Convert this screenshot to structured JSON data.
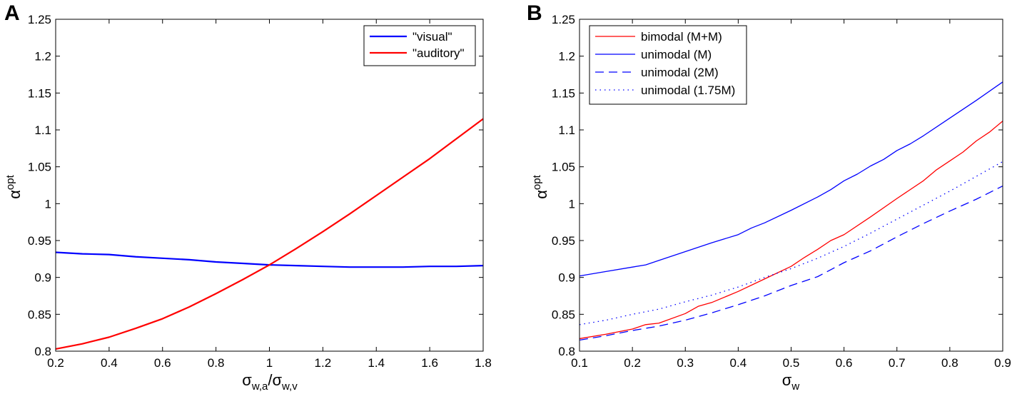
{
  "chart_data": [
    {
      "panel": "A",
      "type": "line",
      "title": "",
      "xlabel_main": "σ",
      "xlabel_sub1": "w,a",
      "xlabel_slash": "/σ",
      "xlabel_sub2": "w,v",
      "ylabel_main": "α",
      "ylabel_sup": "opt",
      "xlim": [
        0.2,
        1.8
      ],
      "ylim": [
        0.8,
        1.25
      ],
      "xticks": [
        "0.2",
        "0.4",
        "0.6",
        "0.8",
        "1",
        "1.2",
        "1.4",
        "1.6",
        "1.8"
      ],
      "yticks": [
        "0.8",
        "0.85",
        "0.9",
        "0.95",
        "1",
        "1.05",
        "1.1",
        "1.15",
        "1.2",
        "1.25"
      ],
      "legend_position": "top-right",
      "series": [
        {
          "name": "\"visual\"",
          "color": "#0000ff",
          "style": "solid",
          "x": [
            0.2,
            0.3,
            0.4,
            0.5,
            0.6,
            0.7,
            0.8,
            0.9,
            1.0,
            1.1,
            1.2,
            1.3,
            1.4,
            1.5,
            1.6,
            1.7,
            1.8
          ],
          "y": [
            0.934,
            0.932,
            0.931,
            0.928,
            0.926,
            0.924,
            0.921,
            0.919,
            0.917,
            0.916,
            0.915,
            0.914,
            0.914,
            0.914,
            0.915,
            0.915,
            0.916
          ]
        },
        {
          "name": "\"auditory\"",
          "color": "#ff0000",
          "style": "solid",
          "x": [
            0.2,
            0.3,
            0.4,
            0.5,
            0.6,
            0.7,
            0.8,
            0.9,
            1.0,
            1.1,
            1.2,
            1.3,
            1.4,
            1.5,
            1.6,
            1.7,
            1.8
          ],
          "y": [
            0.803,
            0.81,
            0.819,
            0.831,
            0.844,
            0.86,
            0.878,
            0.897,
            0.917,
            0.939,
            0.962,
            0.986,
            1.011,
            1.036,
            1.061,
            1.088,
            1.115
          ]
        }
      ]
    },
    {
      "panel": "B",
      "type": "line",
      "title": "",
      "xlabel_main": "σ",
      "xlabel_sub1": "w",
      "ylabel_main": "α",
      "ylabel_sup": "opt",
      "xlim": [
        0.1,
        0.9
      ],
      "ylim": [
        0.8,
        1.25
      ],
      "xticks": [
        "0.1",
        "0.2",
        "0.3",
        "0.4",
        "0.5",
        "0.6",
        "0.7",
        "0.8",
        "0.9"
      ],
      "yticks": [
        "0.8",
        "0.85",
        "0.9",
        "0.95",
        "1",
        "1.05",
        "1.1",
        "1.15",
        "1.2",
        "1.25"
      ],
      "legend_position": "top-left",
      "series": [
        {
          "name": "bimodal (M+M)",
          "color": "#ff0000",
          "style": "solid",
          "x": [
            0.1,
            0.15,
            0.2,
            0.225,
            0.25,
            0.3,
            0.325,
            0.35,
            0.4,
            0.45,
            0.5,
            0.525,
            0.55,
            0.575,
            0.6,
            0.65,
            0.7,
            0.75,
            0.775,
            0.8,
            0.825,
            0.85,
            0.875,
            0.9
          ],
          "y": [
            0.817,
            0.823,
            0.83,
            0.836,
            0.838,
            0.851,
            0.861,
            0.866,
            0.881,
            0.898,
            0.915,
            0.927,
            0.938,
            0.95,
            0.958,
            0.982,
            1.007,
            1.031,
            1.046,
            1.058,
            1.07,
            1.085,
            1.097,
            1.112
          ]
        },
        {
          "name": "unimodal (M)",
          "color": "#0000ff",
          "style": "solid",
          "x": [
            0.1,
            0.15,
            0.2,
            0.225,
            0.25,
            0.3,
            0.35,
            0.4,
            0.425,
            0.45,
            0.5,
            0.55,
            0.575,
            0.6,
            0.625,
            0.65,
            0.675,
            0.7,
            0.725,
            0.75,
            0.8,
            0.85,
            0.9
          ],
          "y": [
            0.902,
            0.908,
            0.914,
            0.917,
            0.923,
            0.935,
            0.947,
            0.958,
            0.967,
            0.974,
            0.991,
            1.009,
            1.019,
            1.031,
            1.04,
            1.051,
            1.06,
            1.072,
            1.081,
            1.092,
            1.116,
            1.14,
            1.165
          ]
        },
        {
          "name": "unimodal (2M)",
          "color": "#0000ff",
          "style": "dashed",
          "x": [
            0.1,
            0.15,
            0.2,
            0.25,
            0.3,
            0.35,
            0.4,
            0.45,
            0.5,
            0.55,
            0.6,
            0.65,
            0.7,
            0.75,
            0.8,
            0.85,
            0.9
          ],
          "y": [
            0.815,
            0.821,
            0.828,
            0.834,
            0.842,
            0.852,
            0.863,
            0.875,
            0.889,
            0.901,
            0.92,
            0.936,
            0.955,
            0.973,
            0.99,
            1.006,
            1.024
          ]
        },
        {
          "name": "unimodal (1.75M)",
          "color": "#0000ff",
          "style": "dotted",
          "x": [
            0.1,
            0.15,
            0.2,
            0.25,
            0.3,
            0.35,
            0.4,
            0.45,
            0.5,
            0.55,
            0.6,
            0.65,
            0.7,
            0.75,
            0.8,
            0.85,
            0.9
          ],
          "y": [
            0.836,
            0.842,
            0.85,
            0.857,
            0.867,
            0.876,
            0.887,
            0.9,
            0.912,
            0.926,
            0.942,
            0.96,
            0.979,
            0.998,
            1.017,
            1.037,
            1.057
          ]
        }
      ]
    }
  ]
}
